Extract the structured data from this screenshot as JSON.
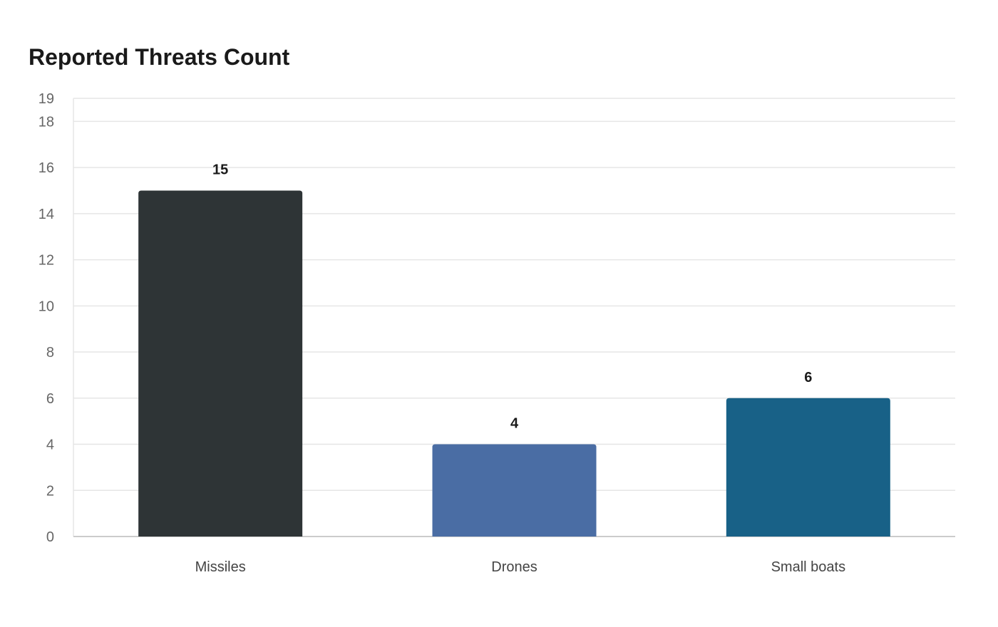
{
  "chart_data": {
    "type": "bar",
    "title": "Reported Threats Count",
    "categories": [
      "Missiles",
      "Drones",
      "Small boats"
    ],
    "values": [
      15,
      4,
      6
    ],
    "colors": [
      "#2e3436",
      "#4a6da4",
      "#186187"
    ],
    "xlabel": "",
    "ylabel": "",
    "ylim": [
      0,
      19
    ],
    "yticks": [
      0,
      2,
      4,
      6,
      8,
      10,
      12,
      14,
      16,
      18,
      19
    ],
    "grid": true,
    "legend": "none",
    "data_labels": true
  }
}
